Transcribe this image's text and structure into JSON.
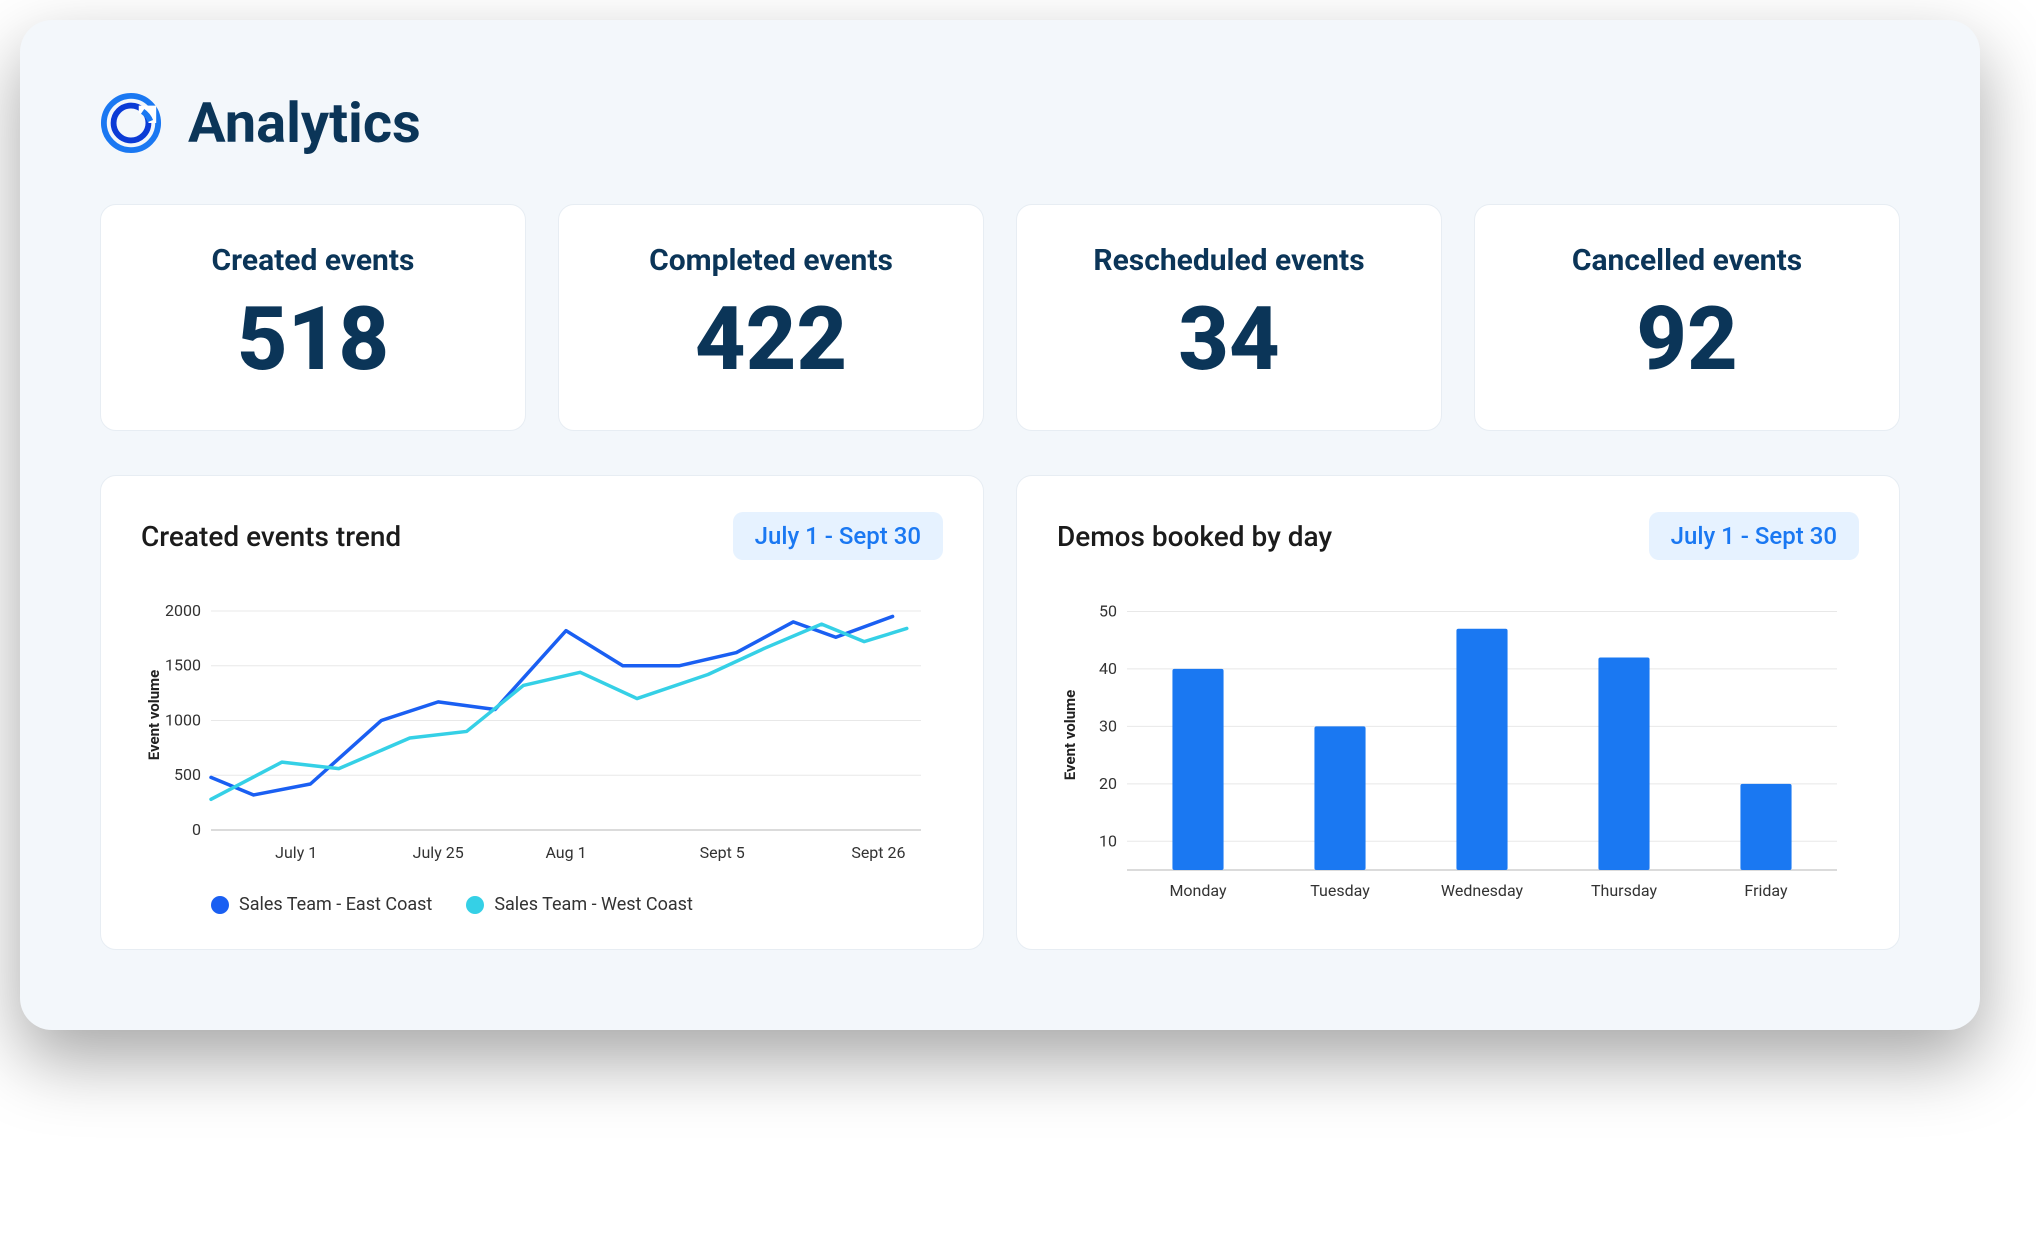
{
  "page": {
    "title": "Analytics",
    "background": "#f3f7fb",
    "text_color": "#0b3558"
  },
  "stats": [
    {
      "label": "Created events",
      "value": "518"
    },
    {
      "label": "Completed events",
      "value": "422"
    },
    {
      "label": "Rescheduled events",
      "value": "34"
    },
    {
      "label": "Cancelled events",
      "value": "92"
    }
  ],
  "line_chart": {
    "title": "Created events trend",
    "date_range": "July 1 - Sept 30",
    "type": "line",
    "y_label": "Event volume",
    "y_ticks": [
      0,
      500,
      1000,
      1500,
      2000
    ],
    "ylim": [
      0,
      2100
    ],
    "x_labels": [
      "July 1",
      "July 25",
      "Aug 1",
      "Sept 5",
      "Sept 26"
    ],
    "x_positions": [
      0.12,
      0.32,
      0.5,
      0.72,
      0.94
    ],
    "grid_color": "#e8e8e8",
    "axis_color": "#cfcfcf",
    "tick_font_size": 16,
    "line_width": 3.5,
    "series": [
      {
        "name": "Sales Team - East Coast",
        "color": "#1a5ff2",
        "points": [
          [
            0.0,
            480
          ],
          [
            0.06,
            320
          ],
          [
            0.14,
            420
          ],
          [
            0.24,
            1000
          ],
          [
            0.32,
            1170
          ],
          [
            0.4,
            1100
          ],
          [
            0.5,
            1820
          ],
          [
            0.58,
            1500
          ],
          [
            0.66,
            1500
          ],
          [
            0.74,
            1620
          ],
          [
            0.82,
            1900
          ],
          [
            0.88,
            1760
          ],
          [
            0.96,
            1950
          ]
        ]
      },
      {
        "name": "Sales Team - West Coast",
        "color": "#35d0e6",
        "points": [
          [
            0.0,
            280
          ],
          [
            0.1,
            620
          ],
          [
            0.18,
            560
          ],
          [
            0.28,
            840
          ],
          [
            0.36,
            900
          ],
          [
            0.44,
            1320
          ],
          [
            0.52,
            1440
          ],
          [
            0.6,
            1200
          ],
          [
            0.7,
            1420
          ],
          [
            0.78,
            1660
          ],
          [
            0.86,
            1880
          ],
          [
            0.92,
            1720
          ],
          [
            0.98,
            1840
          ]
        ]
      }
    ],
    "legend": [
      {
        "label": "Sales Team - East Coast",
        "color": "#1a5ff2"
      },
      {
        "label": "Sales Team - West Coast",
        "color": "#35d0e6"
      }
    ]
  },
  "bar_chart": {
    "title": "Demos booked by day",
    "date_range": "July 1 - Sept 30",
    "type": "bar",
    "y_label": "Event volume",
    "y_ticks": [
      10,
      20,
      30,
      40,
      50
    ],
    "ylim": [
      5,
      52
    ],
    "categories": [
      "Monday",
      "Tuesday",
      "Wednesday",
      "Thursday",
      "Friday"
    ],
    "values": [
      40,
      30,
      47,
      42,
      20
    ],
    "bar_color": "#1a78f2",
    "bar_width": 0.36,
    "grid_color": "#e8e8e8",
    "axis_color": "#cfcfcf",
    "tick_font_size": 16
  }
}
